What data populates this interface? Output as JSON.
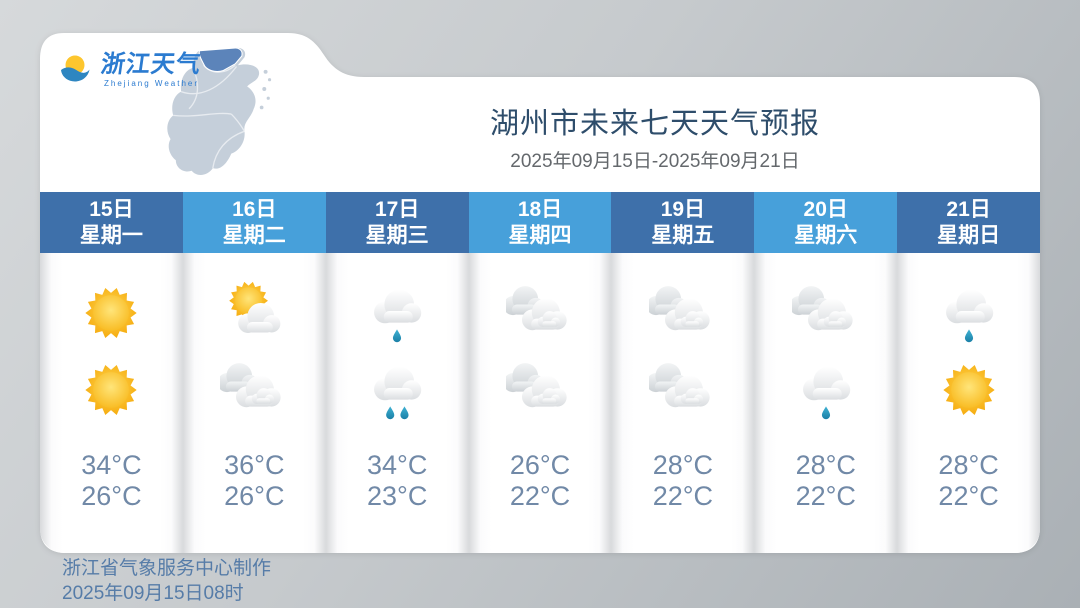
{
  "theme": {
    "page_bg_start": "#d6d9db",
    "page_bg_end": "#aab0b5",
    "card_bg": "#ffffff",
    "header_dark": "#3e70aa",
    "header_light": "#47a0da",
    "title_color": "#2e4d6b",
    "date_color": "#64686c",
    "temp_color": "#7189a7",
    "footer_color": "#567ca8",
    "sun_color": "#f5a80a",
    "rain_drop_color": "#2a97be",
    "map_fill": "#c5cfda",
    "map_highlight": "#5c84ba"
  },
  "logo": {
    "name": "浙江天气",
    "subtitle": "Zhejiang Weather"
  },
  "header": {
    "title": "湖州市未来七天天气预报",
    "date_range": "2025年09月15日-2025年09月21日"
  },
  "days": [
    {
      "date": "15日",
      "weekday": "星期一",
      "day_icon": "sun",
      "night_icon": "sun",
      "high": "34°C",
      "low": "26°C"
    },
    {
      "date": "16日",
      "weekday": "星期二",
      "day_icon": "sun-cloud",
      "night_icon": "clouds",
      "high": "36°C",
      "low": "26°C"
    },
    {
      "date": "17日",
      "weekday": "星期三",
      "day_icon": "cloud-rain-1",
      "night_icon": "cloud-rain-2",
      "high": "34°C",
      "low": "23°C"
    },
    {
      "date": "18日",
      "weekday": "星期四",
      "day_icon": "clouds",
      "night_icon": "clouds",
      "high": "26°C",
      "low": "22°C"
    },
    {
      "date": "19日",
      "weekday": "星期五",
      "day_icon": "clouds",
      "night_icon": "clouds",
      "high": "28°C",
      "low": "22°C"
    },
    {
      "date": "20日",
      "weekday": "星期六",
      "day_icon": "clouds",
      "night_icon": "cloud-rain-1",
      "high": "28°C",
      "low": "22°C"
    },
    {
      "date": "21日",
      "weekday": "星期日",
      "day_icon": "cloud-rain-1",
      "night_icon": "sun",
      "high": "28°C",
      "low": "22°C"
    }
  ],
  "footer": {
    "credit": "浙江省气象服务中心制作",
    "issued": "2025年09月15日08时"
  }
}
